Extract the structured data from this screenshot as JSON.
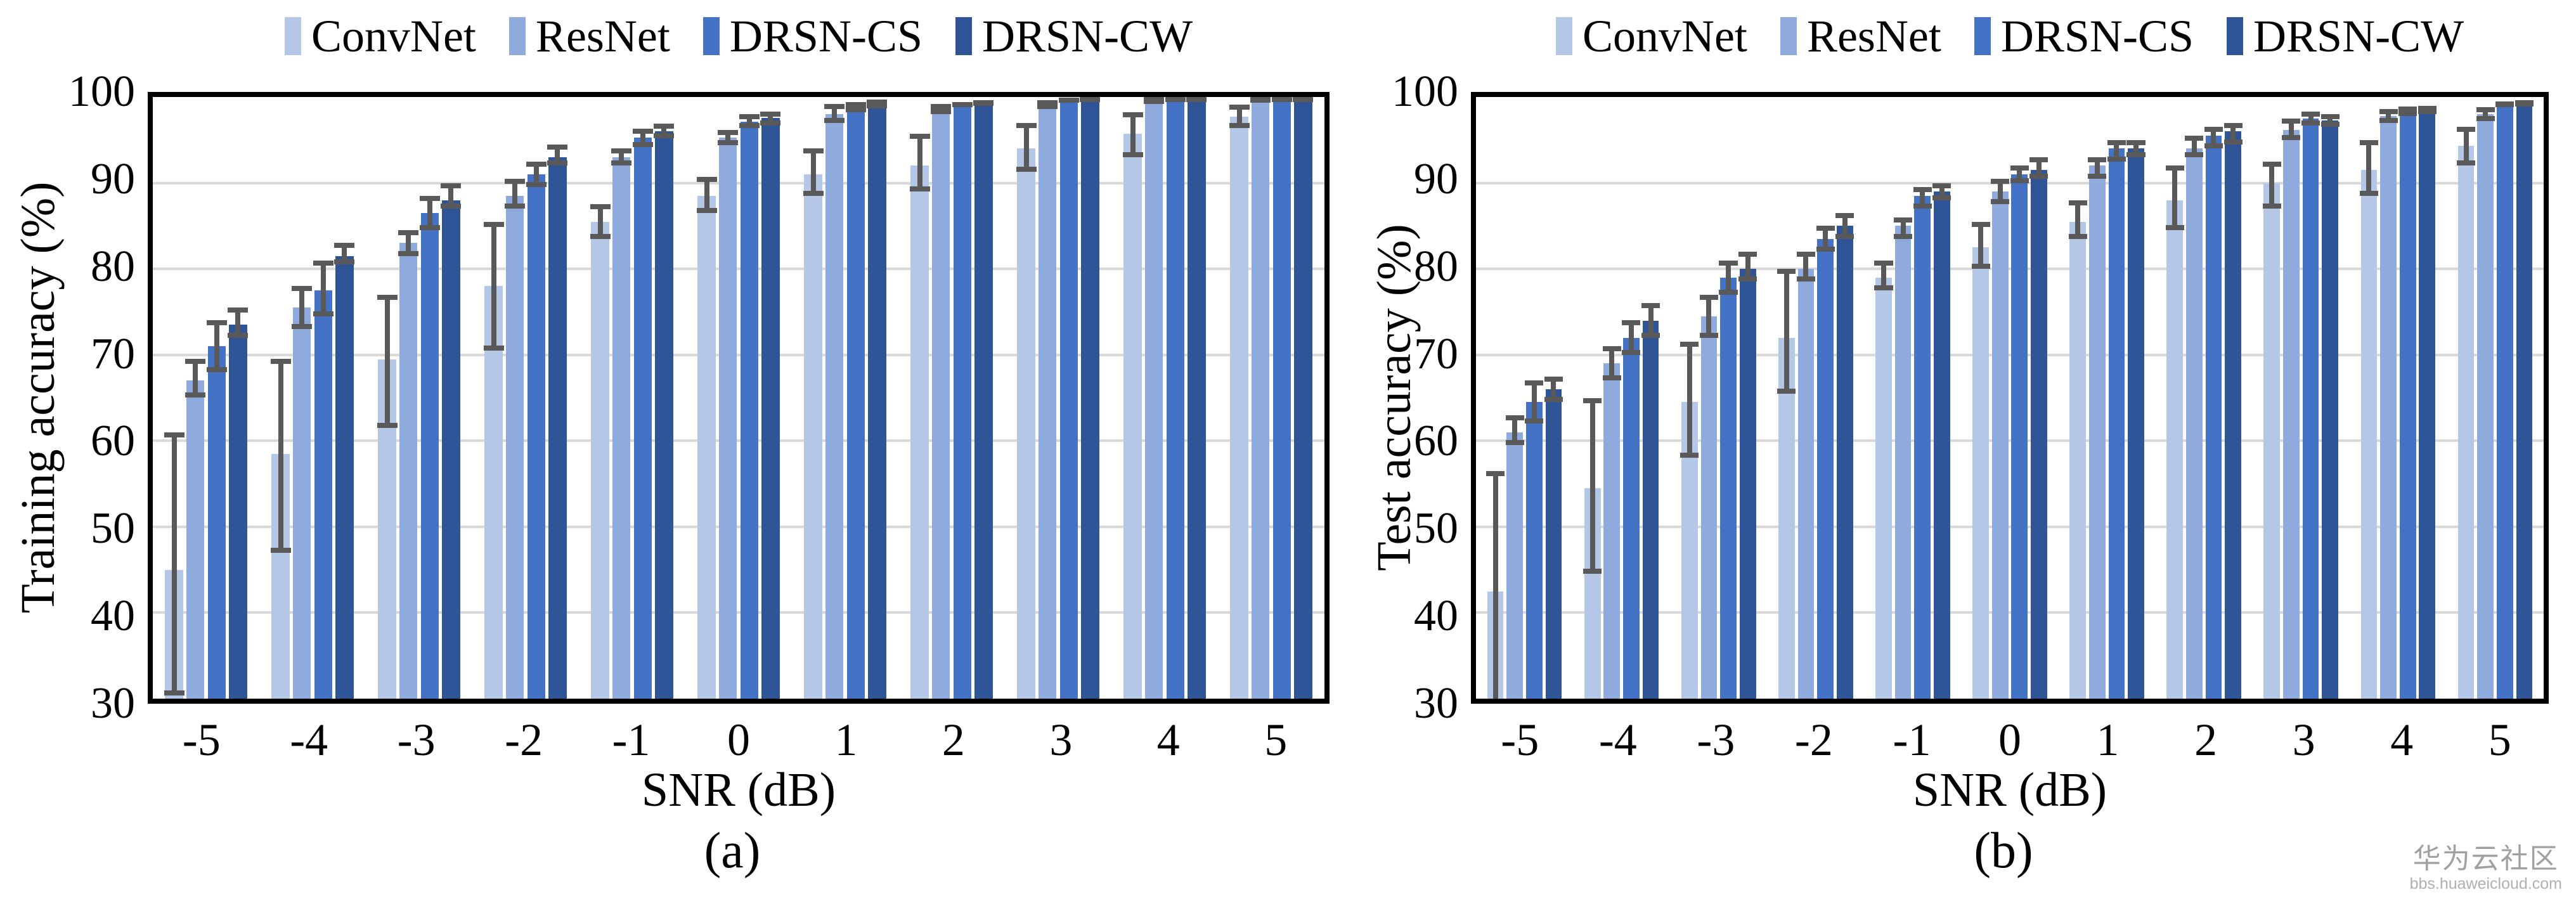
{
  "page": {
    "background": "#ffffff"
  },
  "styles": {
    "error_bar_color": "#595959",
    "gridline_color": "#d9d9d9",
    "axis_color": "#000000",
    "watermark_color": "#a0a0a0",
    "watermark_color2": "#b0b0b0"
  },
  "legend": {
    "items": [
      {
        "label": "ConvNet",
        "color": "#b4c7e7"
      },
      {
        "label": "ResNet",
        "color": "#8faadc"
      },
      {
        "label": "DRSN-CS",
        "color": "#4472c4"
      },
      {
        "label": "DRSN-CW",
        "color": "#2f5597"
      }
    ]
  },
  "watermark": {
    "line1": "华为云社区",
    "line2": "bbs.huaweicloud.com"
  },
  "chart_data": [
    {
      "id": "a",
      "type": "bar",
      "title": "",
      "ylabel": "Training accuracy (%)",
      "xlabel": "SNR (dB)",
      "caption": "(a)",
      "ylim": [
        30,
        100
      ],
      "yticks": [
        30,
        40,
        50,
        60,
        70,
        80,
        90,
        100
      ],
      "gridlines": [
        40,
        50,
        60,
        70,
        80,
        90
      ],
      "grid": true,
      "legend_position": "top",
      "categories": [
        "-5",
        "-4",
        "-3",
        "-2",
        "-1",
        "0",
        "1",
        "2",
        "3",
        "4",
        "5"
      ],
      "series": [
        {
          "name": "ConvNet",
          "color": "#b4c7e7",
          "values": [
            45,
            58.5,
            69.5,
            78,
            85.5,
            88.5,
            91,
            92,
            94,
            95.7,
            97.7
          ],
          "err_lo": [
            30.4,
            47,
            61.5,
            70.5,
            83.5,
            86.5,
            88.5,
            89,
            91.3,
            93,
            96.4
          ],
          "err_hi": [
            61,
            69.5,
            77,
            85.5,
            87.5,
            90.7,
            94,
            95.7,
            97,
            98.2,
            99.1
          ]
        },
        {
          "name": "ResNet",
          "color": "#8faadc",
          "values": [
            67,
            75.5,
            83,
            88.5,
            93,
            95.3,
            98,
            98.5,
            99.1,
            99.6,
            99.6
          ],
          "err_lo": [
            65,
            73,
            81.5,
            87,
            92,
            94.4,
            97,
            98,
            98.6,
            99.2,
            99.3
          ],
          "err_hi": [
            69.5,
            78,
            84.5,
            90.5,
            94,
            96.2,
            99.2,
            99.2,
            99.6,
            100,
            100
          ]
        },
        {
          "name": "DRSN-CS",
          "color": "#4472c4",
          "values": [
            71,
            77.5,
            86.5,
            91,
            95.3,
            97.1,
            98.8,
            99.1,
            99.6,
            99.8,
            99.9
          ],
          "err_lo": [
            68,
            74.5,
            84.5,
            89.5,
            94.2,
            96.4,
            98.2,
            98.8,
            99.3,
            99.6,
            99.8
          ],
          "err_hi": [
            74,
            81,
            88.5,
            92.5,
            96.3,
            98,
            99.4,
            99.4,
            99.9,
            100,
            100
          ]
        },
        {
          "name": "DRSN-CW",
          "color": "#2f5597",
          "values": [
            73.5,
            81.5,
            88,
            93,
            96,
            97.6,
            99.2,
            99.3,
            99.7,
            99.9,
            100
          ],
          "err_lo": [
            72,
            80.5,
            87,
            92,
            95.2,
            96.7,
            98.7,
            99,
            99.4,
            99.8,
            99.9
          ],
          "err_hi": [
            75.5,
            83,
            90,
            94.5,
            96.9,
            98.3,
            99.7,
            99.6,
            100,
            100,
            100
          ]
        }
      ]
    },
    {
      "id": "b",
      "type": "bar",
      "title": "",
      "ylabel": "Test accuracy (%)",
      "xlabel": "SNR (dB)",
      "caption": "(b)",
      "ylim": [
        30,
        100
      ],
      "yticks": [
        30,
        40,
        50,
        60,
        70,
        80,
        90,
        100
      ],
      "gridlines": [
        40,
        50,
        60,
        70,
        80,
        90
      ],
      "grid": true,
      "legend_position": "top",
      "categories": [
        "-5",
        "-4",
        "-3",
        "-2",
        "-1",
        "0",
        "1",
        "2",
        "3",
        "4",
        "5"
      ],
      "series": [
        {
          "name": "ConvNet",
          "color": "#b4c7e7",
          "values": [
            42.5,
            54.5,
            64.5,
            72,
            79,
            82.5,
            85.5,
            88,
            90,
            91.5,
            94.3
          ],
          "err_lo": [
            29,
            44.5,
            58,
            65.5,
            77.5,
            80,
            83.5,
            84.5,
            87,
            88.5,
            92
          ],
          "err_hi": [
            56.5,
            65,
            71.5,
            80,
            81,
            85.5,
            88,
            92,
            92.5,
            95,
            96.5
          ]
        },
        {
          "name": "ResNet",
          "color": "#8faadc",
          "values": [
            61,
            69,
            74.5,
            80,
            85,
            89,
            92,
            94,
            96.2,
            97.8,
            98
          ],
          "err_lo": [
            59.5,
            67,
            72,
            78.5,
            83.5,
            87.5,
            90.5,
            93,
            95,
            97,
            97.2
          ],
          "err_hi": [
            63,
            71,
            77,
            82,
            86,
            90.5,
            93,
            95.5,
            97.5,
            98.6,
            98.8
          ]
        },
        {
          "name": "DRSN-CS",
          "color": "#4472c4",
          "values": [
            64.5,
            72,
            79,
            83.5,
            88.5,
            91,
            94,
            95.5,
            97.5,
            98.4,
            99.2
          ],
          "err_lo": [
            62,
            70,
            77,
            82,
            87,
            90,
            92.5,
            94,
            96.7,
            97.8,
            98.8
          ],
          "err_hi": [
            67,
            74,
            81,
            85,
            89.5,
            92,
            95,
            96.5,
            98.3,
            98.9,
            99.5
          ]
        },
        {
          "name": "DRSN-CW",
          "color": "#2f5597",
          "values": [
            66,
            74,
            80,
            85,
            89,
            91.5,
            94,
            96,
            97.3,
            98.5,
            99.3
          ],
          "err_lo": [
            64.5,
            72,
            78.5,
            83.5,
            88,
            90.5,
            93,
            94.5,
            96.5,
            98,
            98.9
          ],
          "err_hi": [
            67.5,
            76,
            82,
            86.5,
            90,
            93,
            95,
            97,
            98,
            99,
            99.6
          ]
        }
      ]
    }
  ]
}
